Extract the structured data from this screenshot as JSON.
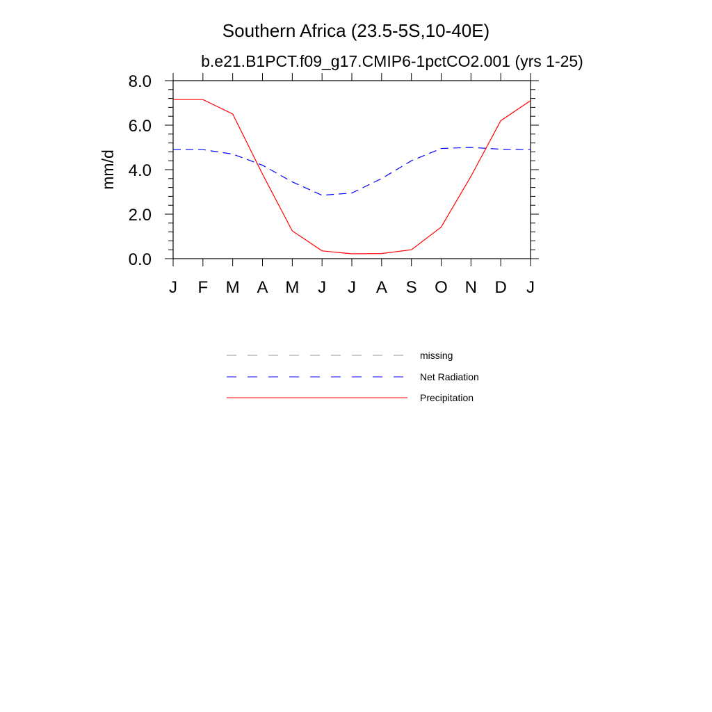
{
  "chart_data": {
    "type": "line",
    "title": "Southern Africa (23.5-5S,10-40E)",
    "subtitle": "b.e21.B1PCT.f09_g17.CMIP6-1pctCO2.001 (yrs 1-25)",
    "ylabel": "mm/d",
    "xlabel": "",
    "categories": [
      "J",
      "F",
      "M",
      "A",
      "M",
      "J",
      "J",
      "A",
      "S",
      "O",
      "N",
      "D",
      "J"
    ],
    "ylim": [
      0,
      8
    ],
    "yticks": [
      0,
      2,
      4,
      6,
      8
    ],
    "ytick_labels": [
      "0.0",
      "2.0",
      "4.0",
      "6.0",
      "8.0"
    ],
    "grid": false,
    "legend_position": "bottom-center",
    "legend": [
      {
        "name": "missing",
        "color": "#999999",
        "dash": "dashed",
        "plotted": false
      },
      {
        "name": "Net Radiation",
        "color": "#0000ff",
        "dash": "dashed",
        "plotted": true
      },
      {
        "name": "Precipitation",
        "color": "#ff0000",
        "dash": "solid",
        "plotted": true
      }
    ],
    "series": [
      {
        "name": "Net Radiation",
        "color": "#0000ff",
        "dash": "dashed",
        "values": [
          4.9,
          4.9,
          4.7,
          4.2,
          3.45,
          2.85,
          2.95,
          3.6,
          4.4,
          4.95,
          5.0,
          4.92,
          4.9
        ]
      },
      {
        "name": "Precipitation",
        "color": "#ff0000",
        "dash": "solid",
        "values": [
          7.15,
          7.15,
          6.5,
          3.8,
          1.25,
          0.35,
          0.22,
          0.23,
          0.4,
          1.42,
          3.7,
          6.2,
          7.1
        ]
      }
    ]
  }
}
